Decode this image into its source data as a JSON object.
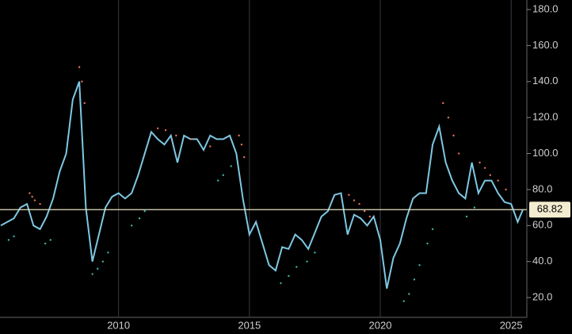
{
  "chart_data": {
    "type": "line",
    "x": [
      2005.5,
      2005.75,
      2006,
      2006.25,
      2006.5,
      2006.75,
      2007,
      2007.25,
      2007.5,
      2007.75,
      2008,
      2008.25,
      2008.5,
      2008.75,
      2009,
      2009.25,
      2009.5,
      2009.75,
      2010,
      2010.25,
      2010.5,
      2010.75,
      2011,
      2011.25,
      2011.5,
      2011.75,
      2012,
      2012.25,
      2012.5,
      2012.75,
      2013,
      2013.25,
      2013.5,
      2013.75,
      2014,
      2014.25,
      2014.5,
      2014.75,
      2015,
      2015.25,
      2015.5,
      2015.75,
      2016,
      2016.25,
      2016.5,
      2016.75,
      2017,
      2017.25,
      2017.5,
      2017.75,
      2018,
      2018.25,
      2018.5,
      2018.75,
      2019,
      2019.25,
      2019.5,
      2019.75,
      2020,
      2020.25,
      2020.5,
      2020.75,
      2021,
      2021.25,
      2021.5,
      2021.75,
      2022,
      2022.25,
      2022.5,
      2022.75,
      2023,
      2023.25,
      2023.5,
      2023.75,
      2024,
      2024.25,
      2024.5,
      2024.75,
      2025,
      2025.25,
      2025.45
    ],
    "values": [
      60,
      62,
      64,
      70,
      72,
      60,
      58,
      65,
      75,
      90,
      100,
      130,
      140,
      70,
      40,
      55,
      70,
      76,
      78,
      75,
      78,
      88,
      100,
      112,
      108,
      105,
      110,
      95,
      110,
      108,
      108,
      102,
      110,
      108,
      108,
      110,
      100,
      75,
      55,
      62,
      50,
      38,
      35,
      48,
      47,
      55,
      52,
      47,
      56,
      65,
      68,
      77,
      78,
      55,
      66,
      64,
      60,
      65,
      52,
      25,
      42,
      50,
      64,
      75,
      78,
      78,
      105,
      115,
      95,
      85,
      78,
      75,
      95,
      78,
      85,
      85,
      78,
      73,
      72,
      62,
      68.82
    ],
    "color": "#7ec8e3",
    "series": [
      {
        "color": "#e8735a",
        "x": [
          2006.6,
          2006.7,
          2006.8,
          2007.0,
          2008.5,
          2008.6,
          2008.7,
          2011.5,
          2011.8,
          2012.2,
          2012.8,
          2013.5,
          2014.6,
          2014.7,
          2014.8,
          2018.8,
          2019.0,
          2019.2,
          2019.4,
          2019.6,
          2022.4,
          2022.6,
          2022.8,
          2023.0,
          2023.8,
          2024.0,
          2024.2,
          2024.5,
          2024.8
        ],
        "values": [
          78,
          76,
          74,
          72,
          148,
          140,
          128,
          114,
          113,
          110,
          108,
          104,
          110,
          105,
          98,
          77,
          74,
          72,
          68,
          65,
          128,
          120,
          110,
          100,
          95,
          92,
          88,
          85,
          80
        ]
      },
      {
        "color": "#3fb5b0",
        "x": [
          2005.8,
          2006.0,
          2007.2,
          2007.4,
          2009.0,
          2009.2,
          2009.4,
          2009.6,
          2010.5,
          2010.8,
          2011.0,
          2013.8,
          2014.0,
          2014.3,
          2016.2,
          2016.5,
          2016.8,
          2017.2,
          2017.5,
          2020.9,
          2021.1,
          2021.3,
          2021.5,
          2021.8,
          2022.0,
          2023.3,
          2023.6
        ],
        "values": [
          52,
          54,
          50,
          52,
          33,
          36,
          40,
          45,
          60,
          64,
          68,
          85,
          88,
          93,
          28,
          32,
          37,
          40,
          45,
          18,
          22,
          30,
          38,
          50,
          58,
          65,
          70
        ]
      }
    ],
    "last_price": 68.82,
    "xlim": [
      2005.47,
      2025.6
    ],
    "ylim": [
      9,
      185.3
    ],
    "xticks": [
      2010,
      2015,
      2020,
      2025
    ],
    "yticks": [
      {
        "value": 20,
        "label": "20.0"
      },
      {
        "value": 40,
        "label": "40.0"
      },
      {
        "value": 60,
        "label": "60.0"
      },
      {
        "value": 80,
        "label": "80.0"
      },
      {
        "value": 100,
        "label": "100.0"
      },
      {
        "value": 120,
        "label": "120.0"
      },
      {
        "value": 140,
        "label": "140.0"
      },
      {
        "value": 160,
        "label": "160.0"
      },
      {
        "value": 180,
        "label": "180.0"
      }
    ],
    "grid": true
  }
}
